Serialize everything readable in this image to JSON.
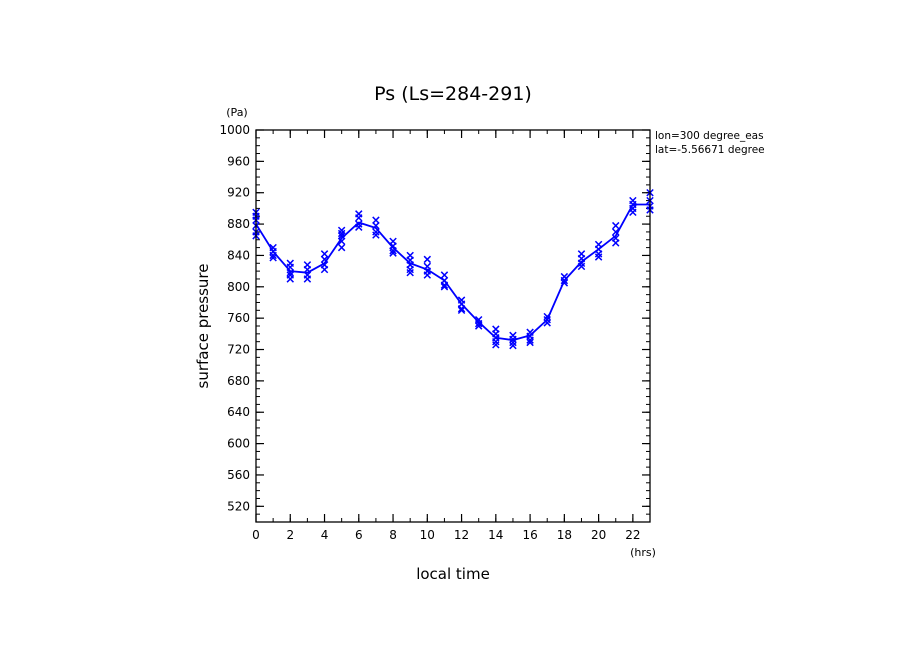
{
  "chart_data": {
    "type": "line",
    "title": "Ps (Ls=284-291)",
    "xlabel": "local time",
    "ylabel": "surface pressure",
    "x_unit": "(hrs)",
    "y_unit": "(Pa)",
    "annotations": [
      "lon=300 degree_eas",
      "lat=-5.56671 degree"
    ],
    "xlim": [
      0,
      23
    ],
    "ylim": [
      500,
      1000
    ],
    "x_ticks": [
      0,
      2,
      4,
      6,
      8,
      10,
      12,
      14,
      16,
      18,
      20,
      22
    ],
    "y_ticks": [
      520,
      560,
      600,
      640,
      680,
      720,
      760,
      800,
      840,
      880,
      920,
      960,
      1000
    ],
    "grid": false,
    "colors": {
      "series": "#0000ff",
      "axes": "#000000"
    },
    "series": [
      {
        "marker": "line",
        "x": [
          0,
          1,
          2,
          3,
          4,
          5,
          6,
          7,
          8,
          9,
          10,
          11,
          12,
          13,
          14,
          15,
          16,
          17,
          18,
          19,
          20,
          21,
          22,
          23
        ],
        "y": [
          880,
          845,
          820,
          818,
          830,
          862,
          882,
          875,
          850,
          830,
          822,
          808,
          778,
          755,
          735,
          732,
          738,
          758,
          808,
          832,
          848,
          865,
          905,
          905
        ]
      },
      {
        "marker": "x",
        "x": [
          0,
          0,
          0,
          0,
          0,
          0,
          1,
          1,
          1,
          1,
          2,
          2,
          2,
          2,
          2,
          3,
          3,
          3,
          3,
          4,
          4,
          4,
          4,
          5,
          5,
          5,
          5,
          5,
          6,
          6,
          6,
          6,
          7,
          7,
          7,
          7,
          8,
          8,
          8,
          8,
          9,
          9,
          9,
          9,
          9,
          10,
          10,
          10,
          10,
          11,
          11,
          11,
          11,
          12,
          12,
          12,
          12,
          13,
          13,
          13,
          14,
          14,
          14,
          14,
          14,
          15,
          15,
          15,
          15,
          16,
          16,
          16,
          16,
          17,
          17,
          17,
          18,
          18,
          18,
          19,
          19,
          19,
          19,
          20,
          20,
          20,
          20,
          21,
          21,
          21,
          21,
          22,
          22,
          22,
          22,
          23,
          23,
          23,
          23
        ],
        "y": [
          895,
          890,
          885,
          878,
          870,
          865,
          850,
          845,
          840,
          837,
          830,
          825,
          818,
          815,
          810,
          828,
          822,
          815,
          810,
          842,
          835,
          828,
          822,
          872,
          865,
          858,
          850,
          868,
          893,
          888,
          880,
          876,
          885,
          878,
          870,
          866,
          858,
          852,
          846,
          843,
          840,
          834,
          828,
          822,
          818,
          835,
          826,
          820,
          815,
          815,
          808,
          802,
          800,
          783,
          778,
          772,
          770,
          758,
          753,
          750,
          746,
          740,
          735,
          730,
          726,
          738,
          733,
          729,
          725,
          742,
          737,
          732,
          729,
          762,
          758,
          754,
          813,
          808,
          805,
          842,
          836,
          830,
          826,
          854,
          848,
          842,
          838,
          878,
          870,
          862,
          856,
          910,
          905,
          900,
          895,
          920,
          910,
          903,
          898
        ]
      }
    ]
  }
}
